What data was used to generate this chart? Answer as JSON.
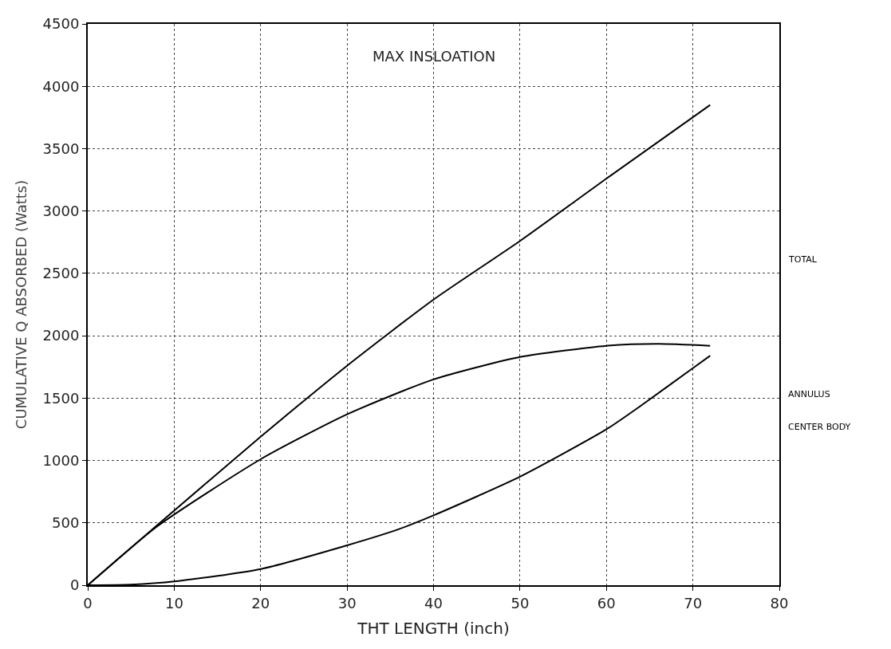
{
  "chart_data": {
    "type": "line",
    "title": "MAX INSLOATION",
    "xlabel": "THT LENGTH (inch)",
    "ylabel": "CUMULATIVE Q ABSORBED (Watts)",
    "xlim": [
      0,
      80
    ],
    "xticks": [
      0,
      10,
      20,
      30,
      40,
      50,
      60,
      70,
      80
    ],
    "ylim": [
      0,
      4500
    ],
    "yticks": [
      0,
      500,
      1000,
      1500,
      2000,
      2500,
      3000,
      3500,
      4000,
      4500
    ],
    "grid": true,
    "legend": false,
    "line_style": "solid",
    "marker": "none",
    "series": [
      {
        "name": "TOTAL",
        "color": "#000000",
        "x": [
          0,
          8,
          20,
          30,
          40,
          50,
          60,
          72
        ],
        "values": [
          0,
          480,
          1190,
          1760,
          2290,
          2760,
          3260,
          3850
        ]
      },
      {
        "name": "ANNULUS",
        "color": "#000000",
        "x": [
          0,
          8,
          20,
          30,
          40,
          50,
          60,
          66,
          72
        ],
        "values": [
          0,
          470,
          1010,
          1370,
          1650,
          1830,
          1920,
          1935,
          1920
        ]
      },
      {
        "name": "CENTER BODY",
        "color": "#000000",
        "x": [
          0,
          5,
          10,
          20,
          30,
          36,
          40,
          50,
          60,
          64,
          70,
          72
        ],
        "values": [
          0,
          5,
          30,
          130,
          320,
          450,
          560,
          870,
          1250,
          1440,
          1740,
          1840
        ]
      }
    ]
  }
}
